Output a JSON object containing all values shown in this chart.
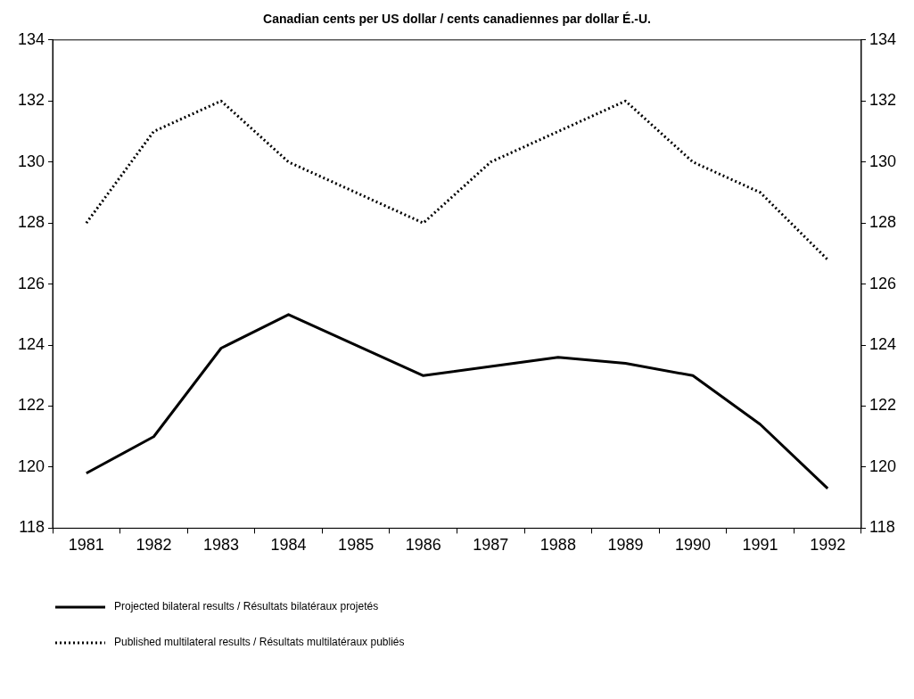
{
  "chart_data": {
    "type": "line",
    "title": "Canadian cents per US dollar / cents canadiennes par dollar É.-U.",
    "categories": [
      "1981",
      "1982",
      "1983",
      "1984",
      "1985",
      "1986",
      "1987",
      "1988",
      "1989",
      "1990",
      "1991",
      "1992"
    ],
    "series": [
      {
        "name": "Projected bilateral results / Résultats bilatéraux projetés",
        "color": "#000000",
        "line_style": "solid",
        "values": [
          119.8,
          121.0,
          123.9,
          125.0,
          124.0,
          123.0,
          123.3,
          123.6,
          123.4,
          123.0,
          121.4,
          119.3
        ]
      },
      {
        "name": "Published multilateral results / Résultats multilatéraux publiés",
        "color": "#000000",
        "line_style": "dotted",
        "values": [
          128,
          131,
          132,
          130,
          129,
          128,
          130,
          131,
          132,
          130,
          129,
          126.8
        ]
      }
    ],
    "ylim": [
      118,
      134
    ],
    "yticks": [
      118,
      120,
      122,
      124,
      126,
      128,
      130,
      132,
      134
    ],
    "y2lim": [
      118,
      134
    ],
    "y2ticks": [
      118,
      120,
      122,
      124,
      126,
      128,
      130,
      132,
      134
    ],
    "grid": false,
    "legend": "bottom left",
    "marker": "none"
  }
}
